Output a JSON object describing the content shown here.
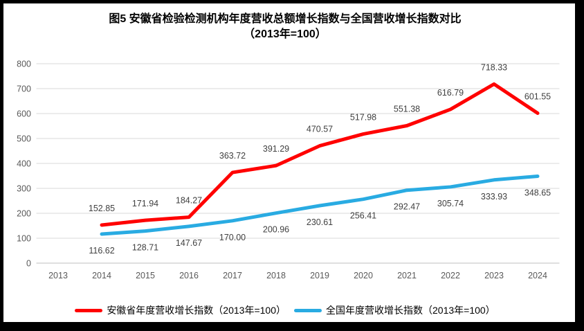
{
  "title": {
    "line1": "图5  安徽省检验检测机构年度营收总额增长指数与全国营收增长指数对比",
    "line2": "（2013年=100）"
  },
  "chart_data": {
    "type": "line",
    "categories": [
      "2013",
      "2014",
      "2015",
      "2016",
      "2017",
      "2018",
      "2019",
      "2020",
      "2021",
      "2022",
      "2023",
      "2024"
    ],
    "series": [
      {
        "name": "安徽省年度营收增长指数（2013年=100）",
        "color": "#FF0000",
        "start_category_index": 1,
        "label_position": "above",
        "values": [
          152.85,
          171.94,
          184.27,
          363.72,
          391.29,
          470.57,
          517.98,
          551.38,
          616.79,
          718.33,
          601.55
        ]
      },
      {
        "name": "全国年度营收增长指数（2013年=100）",
        "color": "#29ABE2",
        "start_category_index": 1,
        "label_position": "below",
        "values": [
          116.62,
          128.71,
          147.67,
          170.0,
          200.96,
          230.61,
          256.41,
          292.47,
          305.74,
          333.93,
          348.65
        ]
      }
    ],
    "ylim": [
      0,
      800
    ],
    "ytick_step": 100,
    "grid": true,
    "legend_position": "bottom",
    "colors": {
      "gridline": "#D9D9D9",
      "axis_line": "#BFBFBF",
      "tick_label": "#595959",
      "data_label": "#404040",
      "title": "#000000"
    }
  }
}
